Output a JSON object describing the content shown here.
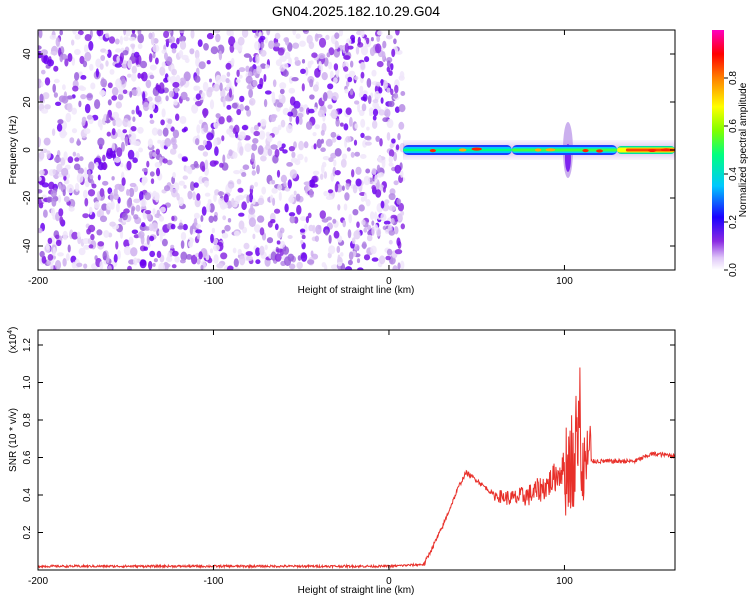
{
  "title": "GN04.2025.182.10.29.G04",
  "chart_data": [
    {
      "type": "heatmap",
      "xlabel": "Height of straight line (km)",
      "ylabel": "Frequency (Hz)",
      "xlim": [
        -200,
        163
      ],
      "ylim": [
        -50,
        50
      ],
      "xticks": [
        -200,
        -100,
        0,
        100
      ],
      "yticks": [
        -40,
        -20,
        0,
        20,
        40
      ],
      "colorbar": {
        "label": "Normalized spectral amplitude",
        "range": [
          0,
          1
        ],
        "ticks": [
          "0.0",
          "0.2",
          "0.4",
          "0.6",
          "0.8"
        ],
        "colormap": [
          "#ffffff",
          "#e8d8f8",
          "#8a2be2",
          "#1a00ff",
          "#00c8ff",
          "#00ff80",
          "#80ff00",
          "#ffff00",
          "#ff8000",
          "#ff0000",
          "#ff00c0"
        ]
      },
      "noise_region_x": [
        -200,
        8
      ],
      "signal_band": {
        "x": [
          8,
          163
        ],
        "center_hz": 0,
        "bright_from_km": 130,
        "burst_at_km": [
          100,
          104
        ]
      }
    },
    {
      "type": "line",
      "xlabel": "Height of straight line (km)",
      "ylabel": "SNR (10 * v/v)",
      "y_scale_label": "(x10",
      "y_scale_exp": "4",
      "xlim": [
        -200,
        163
      ],
      "ylim": [
        0,
        1.28
      ],
      "xticks": [
        -200,
        -100,
        0,
        100
      ],
      "yticks": [
        "0.2",
        "0.4",
        "0.6",
        "0.8",
        "1.0",
        "1.2"
      ],
      "series": [
        {
          "color": "#e8302a",
          "x": [
            -200,
            -100,
            0,
            20,
            30,
            40,
            44,
            50,
            60,
            70,
            80,
            90,
            95,
            100,
            105,
            108,
            110,
            112,
            115,
            120,
            140,
            150,
            163
          ],
          "y": [
            0.02,
            0.02,
            0.02,
            0.03,
            0.22,
            0.45,
            0.52,
            0.48,
            0.4,
            0.38,
            0.4,
            0.45,
            0.5,
            0.55,
            0.6,
            0.7,
            0.55,
            0.6,
            0.58,
            0.58,
            0.58,
            0.62,
            0.61
          ]
        }
      ]
    }
  ]
}
